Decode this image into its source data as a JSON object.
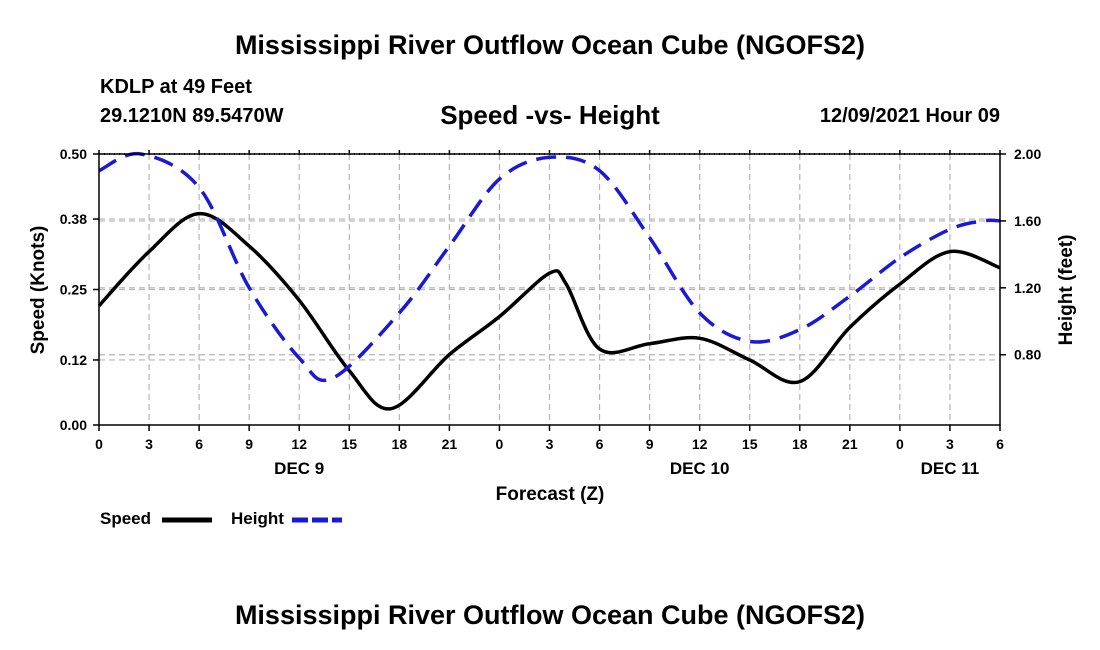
{
  "header": {
    "title": "Mississippi River Outflow Ocean Cube (NGOFS2)",
    "station": "KDLP at 49 Feet",
    "coords": "29.1210N  89.5470W",
    "subtitle": "Speed -vs- Height",
    "datetime": "12/09/2021 Hour 09"
  },
  "footer": {
    "title": "Mississippi River Outflow Ocean Cube (NGOFS2)"
  },
  "colors": {
    "speed": "#000000",
    "height": "#1a1ad6",
    "grid": "#b4b4b4"
  },
  "chart_data": {
    "type": "line",
    "title": "Speed -vs- Height",
    "xlabel": "Forecast (Z)",
    "ylabel": "Speed (Knots)",
    "y2label": "Height (feet)",
    "xlim": [
      0,
      54
    ],
    "ylim": [
      0,
      0.5
    ],
    "y2lim": [
      0.38,
      2.0
    ],
    "x_ticks": [
      0,
      3,
      6,
      9,
      12,
      15,
      18,
      21,
      24,
      27,
      30,
      33,
      36,
      39,
      42,
      45,
      48,
      51,
      54
    ],
    "x_tick_labels": [
      "0",
      "3",
      "6",
      "9",
      "12",
      "15",
      "18",
      "21",
      "0",
      "3",
      "6",
      "9",
      "12",
      "15",
      "18",
      "21",
      "0",
      "3",
      "6"
    ],
    "day_labels": [
      {
        "x": 12,
        "label": "DEC 9"
      },
      {
        "x": 36,
        "label": "DEC 10"
      },
      {
        "x": 51,
        "label": "DEC 11"
      }
    ],
    "y_ticks": [
      0.0,
      0.12,
      0.25,
      0.38,
      0.5
    ],
    "y_tick_labels": [
      "0.00",
      "0.12",
      "0.25",
      "0.38",
      "0.50"
    ],
    "y2_ticks": [
      0.8,
      1.2,
      1.6,
      2.0
    ],
    "y2_tick_labels": [
      "0.80",
      "1.20",
      "1.60",
      "2.00"
    ],
    "grid": true,
    "series": [
      {
        "name": "Speed",
        "axis": "left",
        "style": "solid",
        "x": [
          0,
          3,
          6,
          9,
          12,
          15,
          17.5,
          21,
          24,
          27,
          28,
          30,
          33,
          36,
          39,
          42,
          45,
          48,
          51,
          54
        ],
        "values": [
          0.22,
          0.32,
          0.39,
          0.33,
          0.23,
          0.1,
          0.03,
          0.13,
          0.2,
          0.28,
          0.26,
          0.14,
          0.15,
          0.16,
          0.12,
          0.08,
          0.18,
          0.26,
          0.32,
          0.29
        ]
      },
      {
        "name": "Height",
        "axis": "right",
        "style": "dashed",
        "x": [
          0,
          2.5,
          6,
          9,
          12,
          14,
          18,
          21,
          24,
          27,
          30,
          33,
          36,
          39,
          42,
          45,
          48,
          51,
          53,
          54
        ],
        "values": [
          1.9,
          2.0,
          1.8,
          1.2,
          0.78,
          0.66,
          1.05,
          1.45,
          1.85,
          1.98,
          1.9,
          1.5,
          1.05,
          0.88,
          0.95,
          1.15,
          1.38,
          1.55,
          1.6,
          1.6
        ]
      }
    ],
    "legend": [
      {
        "label": "Speed",
        "series": "Speed"
      },
      {
        "label": "Height",
        "series": "Height"
      }
    ],
    "legend_position": "bottom-left"
  }
}
